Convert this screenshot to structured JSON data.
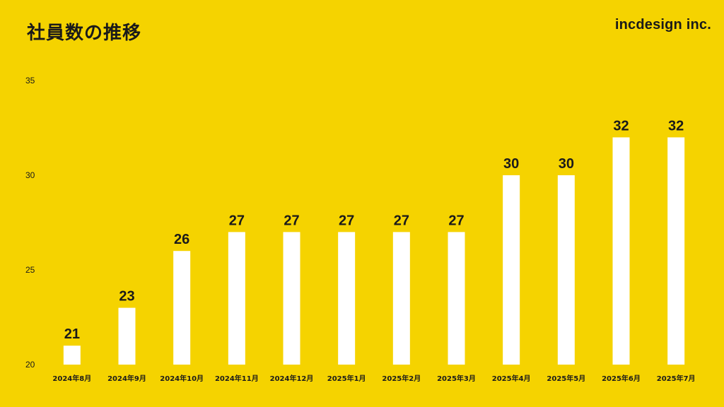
{
  "header": {
    "title": "社員数の推移",
    "logo": "incdesign inc."
  },
  "colors": {
    "background": "#F5D300",
    "bar": "#FFFFFF",
    "text": "#1A1A1A"
  },
  "chart_data": {
    "type": "bar",
    "title": "社員数の推移",
    "xlabel": "",
    "ylabel": "",
    "categories": [
      "2024年8月",
      "2024年9月",
      "2024年10月",
      "2024年11月",
      "2024年12月",
      "2025年1月",
      "2025年2月",
      "2025年3月",
      "2025年4月",
      "2025年5月",
      "2025年6月",
      "2025年7月"
    ],
    "values": [
      21,
      23,
      26,
      27,
      27,
      27,
      27,
      27,
      30,
      30,
      32,
      32
    ],
    "ylim": [
      20,
      35
    ],
    "yticks": [
      20,
      25,
      30,
      35
    ],
    "grid": false,
    "legend": "none",
    "data_labels": true
  }
}
